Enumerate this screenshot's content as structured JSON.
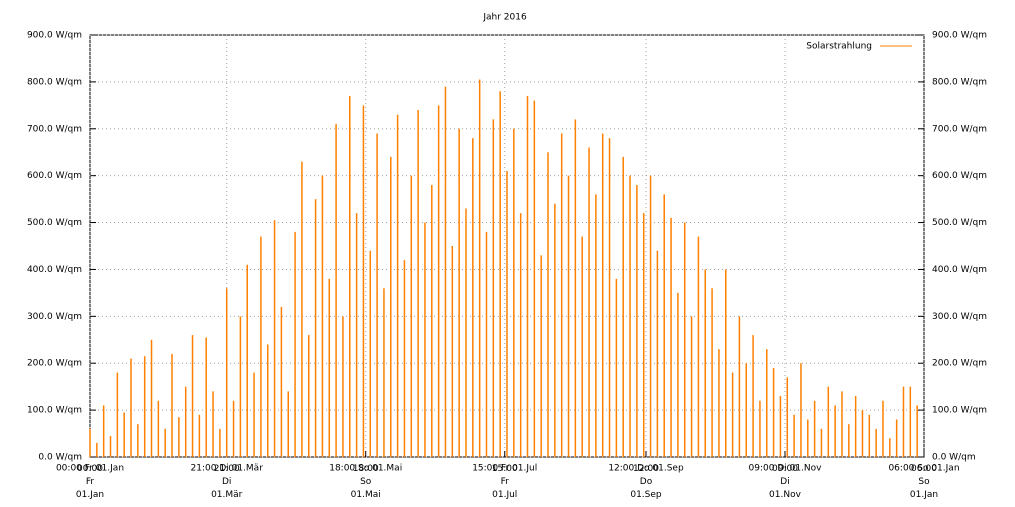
{
  "chart_data": {
    "type": "impulse",
    "title": "Jahr 2016",
    "x": [
      0,
      3,
      6,
      9,
      12,
      15,
      18,
      21,
      24,
      27,
      30,
      33,
      36,
      39,
      42,
      45,
      48,
      51,
      54,
      57,
      60,
      63,
      66,
      69,
      72,
      75,
      78,
      81,
      84,
      87,
      90,
      93,
      96,
      99,
      102,
      105,
      108,
      111,
      114,
      117,
      120,
      123,
      126,
      129,
      132,
      135,
      138,
      141,
      144,
      147,
      150,
      153,
      156,
      159,
      162,
      165,
      168,
      171,
      174,
      177,
      180,
      183,
      186,
      189,
      192,
      195,
      198,
      201,
      204,
      207,
      210,
      213,
      216,
      219,
      222,
      225,
      228,
      231,
      234,
      237,
      240,
      243,
      246,
      249,
      252,
      255,
      258,
      261,
      264,
      267,
      270,
      273,
      276,
      279,
      282,
      285,
      288,
      291,
      294,
      297,
      300,
      303,
      306,
      309,
      312,
      315,
      318,
      321,
      324,
      327,
      330,
      333,
      336,
      339,
      342,
      345,
      348,
      351,
      354,
      357,
      360,
      363
    ],
    "series": [
      {
        "name": "Solarstrahlung",
        "color": "#ff8000",
        "values": [
          60,
          30,
          110,
          45,
          180,
          95,
          210,
          70,
          215,
          250,
          120,
          60,
          220,
          85,
          150,
          260,
          90,
          255,
          140,
          60,
          360,
          120,
          300,
          410,
          180,
          470,
          240,
          505,
          320,
          140,
          480,
          630,
          260,
          550,
          600,
          380,
          710,
          300,
          770,
          520,
          750,
          440,
          690,
          360,
          640,
          730,
          420,
          600,
          740,
          500,
          580,
          750,
          790,
          450,
          700,
          530,
          680,
          805,
          480,
          720,
          780,
          610,
          700,
          520,
          770,
          760,
          430,
          650,
          540,
          690,
          600,
          720,
          470,
          660,
          560,
          690,
          680,
          380,
          640,
          600,
          580,
          520,
          600,
          440,
          560,
          510,
          350,
          500,
          300,
          470,
          400,
          360,
          230,
          400,
          180,
          300,
          200,
          260,
          120,
          230,
          190,
          130,
          170,
          90,
          200,
          80,
          120,
          60,
          150,
          110,
          140,
          70,
          130,
          100,
          90,
          60,
          120,
          40,
          80,
          150,
          150,
          110
        ]
      }
    ],
    "xlim": [
      0,
      366
    ],
    "xticks": [
      {
        "value": 0,
        "label": "00:00\nFr\n01.Jan"
      },
      {
        "value": 60,
        "label": "21:00\nDi\n01.Mär"
      },
      {
        "value": 121,
        "label": "18:00\nSo\n01.Mai"
      },
      {
        "value": 182,
        "label": "15:00\nFr\n01.Jul"
      },
      {
        "value": 244,
        "label": "12:00\nDo\n01.Sep"
      },
      {
        "value": 305,
        "label": "09:00\nDi\n01.Nov"
      },
      {
        "value": 366,
        "label": "06:00\nSo\n01.Jan"
      }
    ],
    "ylim": [
      0,
      900
    ],
    "yticks": [
      {
        "value": 0,
        "label": "0.0 W/qm"
      },
      {
        "value": 100,
        "label": "100.0 W/qm"
      },
      {
        "value": 200,
        "label": "200.0 W/qm"
      },
      {
        "value": 300,
        "label": "300.0 W/qm"
      },
      {
        "value": 400,
        "label": "400.0 W/qm"
      },
      {
        "value": 500,
        "label": "500.0 W/qm"
      },
      {
        "value": 600,
        "label": "600.0 W/qm"
      },
      {
        "value": 700,
        "label": "700.0 W/qm"
      },
      {
        "value": 800,
        "label": "800.0 W/qm"
      },
      {
        "value": 900,
        "label": "900.0 W/qm"
      }
    ],
    "grid": true,
    "legend": "top-right"
  }
}
